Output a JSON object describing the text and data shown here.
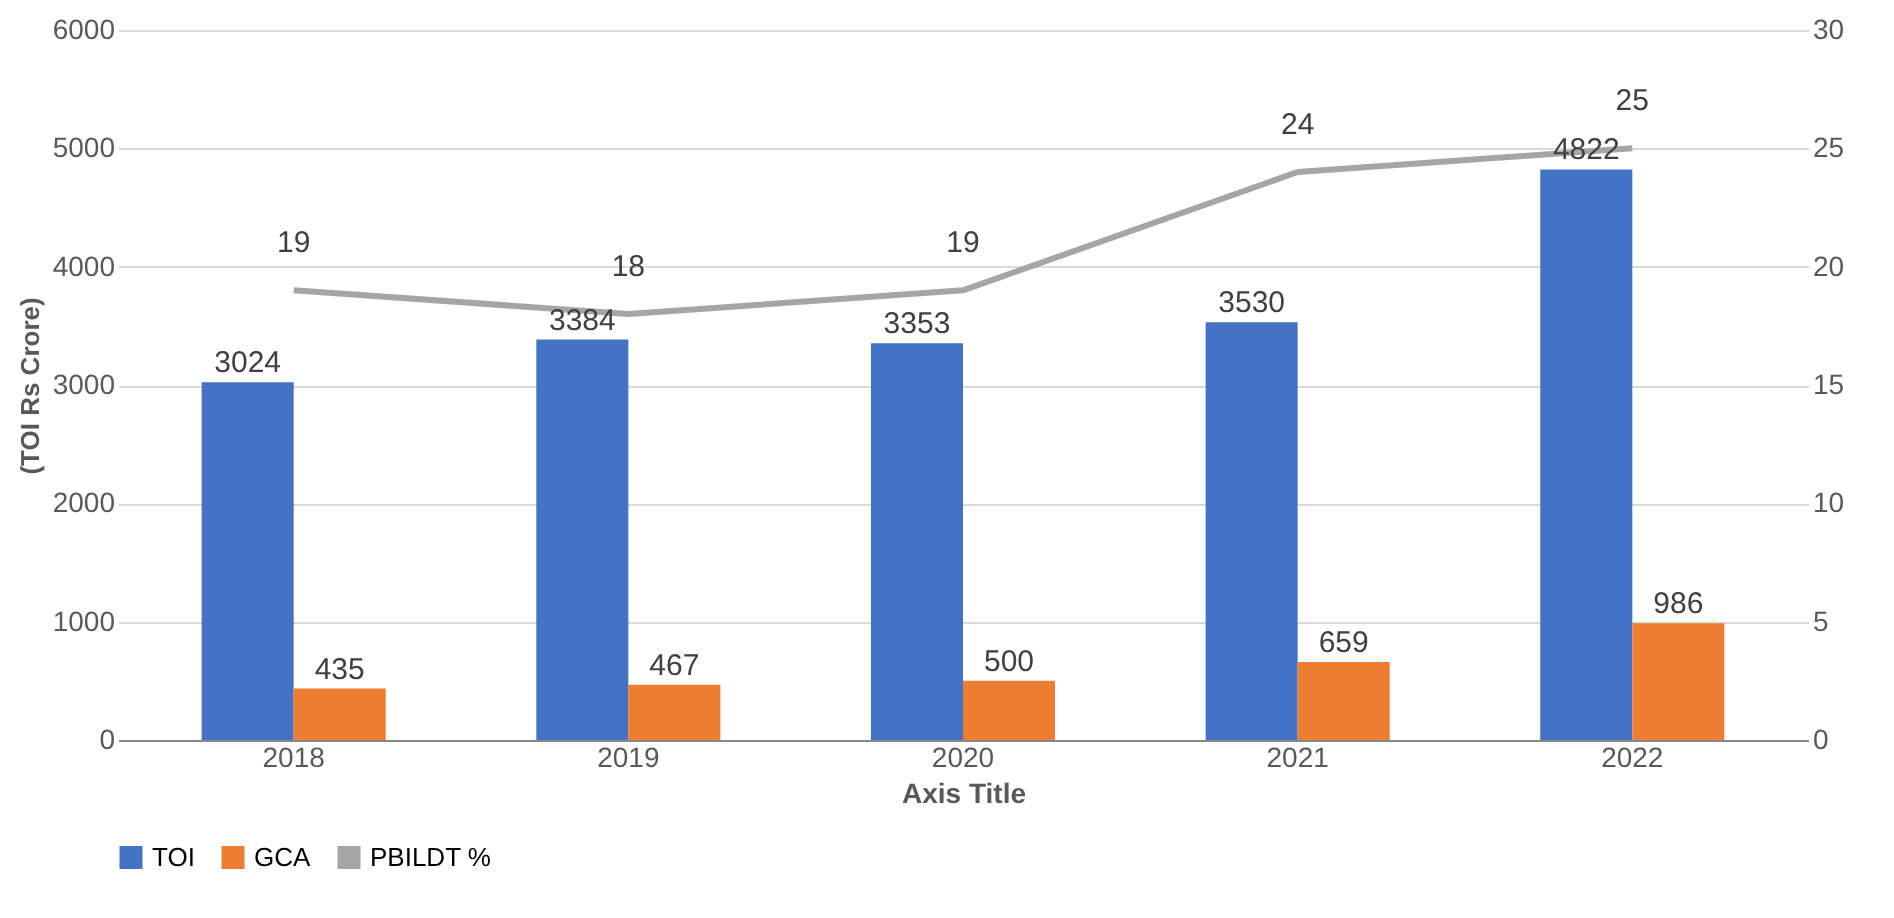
{
  "chart_data": {
    "type": "bar",
    "xlabel": "Axis Title",
    "ylabel": "(TOI Rs Crore)",
    "categories": [
      "2018",
      "2019",
      "2020",
      "2021",
      "2022"
    ],
    "series": [
      {
        "name": "TOI",
        "color": "#4472c4",
        "values": [
          3024,
          3384,
          3353,
          3530,
          4822
        ]
      },
      {
        "name": "GCA",
        "color": "#ed7d31",
        "values": [
          435,
          467,
          500,
          659,
          986
        ]
      },
      {
        "name": "PBILDT %",
        "color": "#a5a5a5",
        "type": "line",
        "axis": "y2",
        "line_style": "solid",
        "marker": "none",
        "values": [
          19,
          18,
          19,
          24,
          25
        ]
      }
    ],
    "ylim": [
      0,
      6000
    ],
    "yticks": [
      0,
      1000,
      2000,
      3000,
      4000,
      5000,
      6000
    ],
    "y2lim": [
      0,
      30
    ],
    "y2ticks": [
      0,
      5,
      10,
      15,
      20,
      25,
      30
    ],
    "data_labels": true,
    "grid": "y",
    "legend": "bottom"
  }
}
